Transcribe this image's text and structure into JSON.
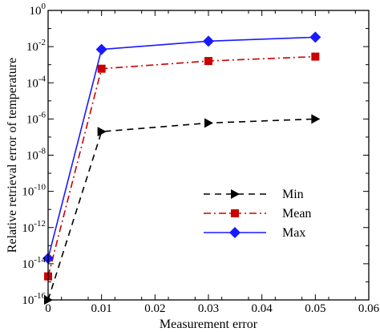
{
  "chart_data": {
    "type": "line",
    "xlabel": "Measurement error",
    "ylabel": "Relative retrieval error of temperature",
    "xlim": [
      0,
      0.06
    ],
    "ylim_log10": [
      -16,
      0
    ],
    "y_scale": "log",
    "x_ticks": [
      "0",
      "0.01",
      "0.02",
      "0.03",
      "0.04",
      "0.05",
      "0.06"
    ],
    "y_tick_base": "10",
    "y_tick_exponents": [
      "0",
      "-2",
      "-4",
      "-6",
      "-8",
      "-10",
      "-12",
      "-14",
      "-16"
    ],
    "legend_position": "lower-right",
    "grid": false,
    "series": [
      {
        "name": "Min",
        "color": "#000000",
        "line_style": "dashed",
        "marker": "triangle-right",
        "x": [
          0,
          0.01,
          0.03,
          0.05
        ],
        "y": [
          1e-16,
          2e-07,
          6e-07,
          1e-06
        ]
      },
      {
        "name": "Mean",
        "color": "#cc0000",
        "line_style": "dash-dot",
        "marker": "square",
        "x": [
          0,
          0.01,
          0.03,
          0.05
        ],
        "y": [
          2e-15,
          0.0006,
          0.0016,
          0.0028
        ]
      },
      {
        "name": "Max",
        "color": "#1a1aff",
        "line_style": "solid",
        "marker": "diamond",
        "x": [
          0,
          0.01,
          0.03,
          0.05
        ],
        "y": [
          2e-14,
          0.007,
          0.02,
          0.033
        ]
      }
    ]
  }
}
